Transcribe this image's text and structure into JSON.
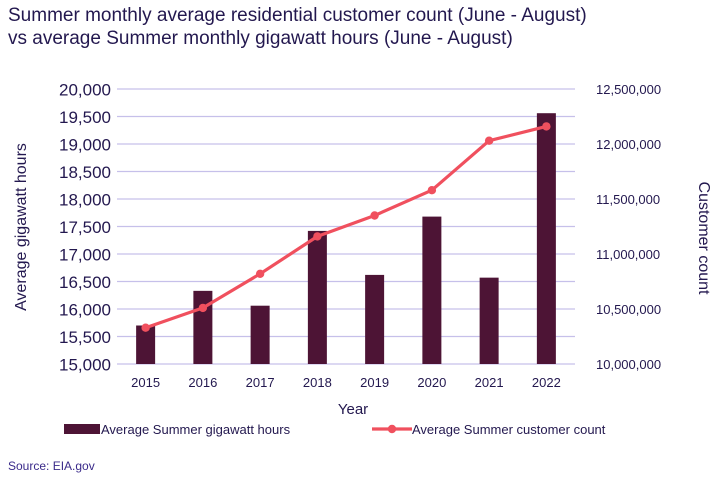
{
  "chart_data": {
    "type": "bar",
    "title": "Summer monthly average residential customer count (June - August) vs average Summer monthly gigawatt hours (June - August)",
    "title_lines": [
      "Summer monthly average residential customer count (June - August)",
      "vs average Summer monthly gigawatt hours (June - August)"
    ],
    "xlabel": "Year",
    "ylabel": "Average gigawatt hours",
    "y2label": "Customer count",
    "categories": [
      "2015",
      "2016",
      "2017",
      "2018",
      "2019",
      "2020",
      "2021",
      "2022"
    ],
    "ylim": [
      15000,
      20000
    ],
    "y2lim": [
      10000000,
      12500000
    ],
    "yticks": [
      "15,000",
      "15,500",
      "16,000",
      "16,500",
      "17,000",
      "17,500",
      "18,000",
      "18,500",
      "19,000",
      "19,500",
      "20,000"
    ],
    "y2ticks": [
      "10,000,000",
      "10,500,000",
      "11,000,000",
      "11,500,000",
      "12,000,000",
      "12,500,000"
    ],
    "grid": true,
    "legend_position": "bottom",
    "series": [
      {
        "name": "Average Summer gigawatt hours",
        "type": "bar",
        "axis": "left",
        "color": "#4d1435",
        "values": [
          15700,
          16330,
          16060,
          17420,
          16620,
          17680,
          16570,
          19560
        ]
      },
      {
        "name": "Average Summer customer count",
        "type": "line",
        "axis": "right",
        "color": "#f0505e",
        "values": [
          10330000,
          10510000,
          10820000,
          11160000,
          11350000,
          11580000,
          12030000,
          12160000
        ]
      }
    ]
  },
  "source": "Source: EIA.gov",
  "colors": {
    "text": "#23184f",
    "grid": "#c6c0ea",
    "bar": "#4d1435",
    "line": "#f0505e"
  }
}
